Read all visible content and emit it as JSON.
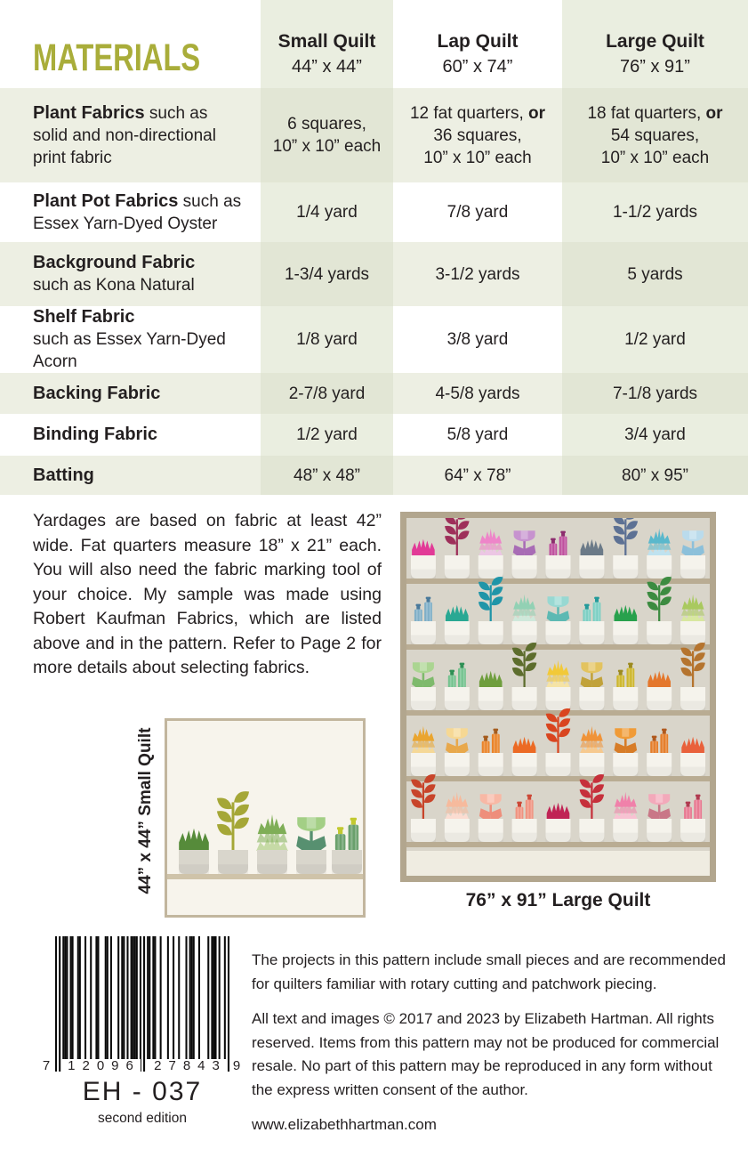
{
  "title": "MATERIALS",
  "accent_color": "#a9ad3a",
  "palette": {
    "table_tint_light": "#eaeee0",
    "table_row_green": "#edefe3",
    "table_tint_green": "#e2e6d5"
  },
  "table": {
    "columns": [
      {
        "label": "Small Quilt",
        "size": "44” x 44”"
      },
      {
        "label": "Lap Quilt",
        "size": "60” x 74”"
      },
      {
        "label": "Large Quilt",
        "size": "76” x 91”"
      }
    ],
    "rows": [
      {
        "name_bold": "Plant Fabrics",
        "name_rest": " such as",
        "sub": [
          "solid and non-directional",
          "print fabric"
        ],
        "shaded": true,
        "cells": [
          [
            {
              "t": "6 squares,"
            },
            {
              "t": "10” x 10” each"
            }
          ],
          [
            {
              "t": "12 fat quarters, ",
              "b": "or"
            },
            {
              "t": "36 squares,"
            },
            {
              "t": "10” x 10” each"
            }
          ],
          [
            {
              "t": "18 fat quarters, ",
              "b": "or"
            },
            {
              "t": "54 squares,"
            },
            {
              "t": "10” x 10” each"
            }
          ]
        ]
      },
      {
        "name_bold": "Plant Pot Fabrics",
        "name_rest": " such as",
        "sub": [
          "Essex Yarn-Dyed Oyster"
        ],
        "shaded": false,
        "cells": [
          [
            {
              "t": "1/4 yard"
            }
          ],
          [
            {
              "t": "7/8 yard"
            }
          ],
          [
            {
              "t": "1-1/2 yards"
            }
          ]
        ]
      },
      {
        "name_bold": "Background Fabric",
        "name_rest": "",
        "sub": [
          "such as Kona Natural"
        ],
        "shaded": true,
        "cells": [
          [
            {
              "t": "1-3/4 yards"
            }
          ],
          [
            {
              "t": "3-1/2 yards"
            }
          ],
          [
            {
              "t": "5 yards"
            }
          ]
        ]
      },
      {
        "name_bold": "Shelf Fabric",
        "name_rest": "",
        "sub": [
          "such as Essex Yarn-Dyed Acorn"
        ],
        "shaded": false,
        "cells": [
          [
            {
              "t": "1/8 yard"
            }
          ],
          [
            {
              "t": "3/8 yard"
            }
          ],
          [
            {
              "t": "1/2 yard"
            }
          ]
        ]
      },
      {
        "name_bold": "Backing Fabric",
        "name_rest": "",
        "sub": [],
        "shaded": true,
        "cells": [
          [
            {
              "t": "2-7/8 yard"
            }
          ],
          [
            {
              "t": "4-5/8 yards"
            }
          ],
          [
            {
              "t": "7-1/8 yards"
            }
          ]
        ]
      },
      {
        "name_bold": "Binding Fabric",
        "name_rest": "",
        "sub": [],
        "shaded": false,
        "cells": [
          [
            {
              "t": "1/2 yard"
            }
          ],
          [
            {
              "t": "5/8 yard"
            }
          ],
          [
            {
              "t": "3/4 yard"
            }
          ]
        ]
      },
      {
        "name_bold": "Batting",
        "name_rest": "",
        "sub": [],
        "shaded": true,
        "cells": [
          [
            {
              "t": "48” x 48”"
            }
          ],
          [
            {
              "t": "64” x 78”"
            }
          ],
          [
            {
              "t": "80” x 95”"
            }
          ]
        ]
      }
    ]
  },
  "notes_paragraph": "Yardages are based on fabric at least 42” wide. Fat quarters measure 18” x 21” each. You will also need the fabric marking tool of your choice. My sample was made using Robert Kaufman Fabrics, which are listed above and in the pattern. Refer to Page 2 for more details about selecting fabrics.",
  "small_quilt": {
    "caption": "44” x 44” Small Quilt",
    "bg": "#f7f4ec",
    "border": "#c2b69e",
    "pot": "#d9d6cc",
    "shelf": "#cfc3a9",
    "plants": [
      {
        "t": "bush",
        "c": "#568b3a"
      },
      {
        "t": "stem",
        "c": "#a5a737"
      },
      {
        "t": "agave",
        "c": "#7fae57",
        "c2": "#c6daa6"
      },
      {
        "t": "flower",
        "c": "#a3cf85",
        "c2": "#579070"
      },
      {
        "t": "bottles",
        "c": "#6aa06c",
        "c2": "#c2c930"
      }
    ]
  },
  "large_quilt": {
    "caption": "76” x 91” Large Quilt",
    "bg": "#d9d5ca",
    "border": "#b2a68e",
    "pot": "#f5f3ec",
    "shelf": "#b9ac93",
    "base": "#efece1",
    "rows": [
      [
        {
          "t": "bush",
          "c": "#e23a97",
          "c2": "#ef79bd"
        },
        {
          "t": "stem",
          "c": "#9e2f5a"
        },
        {
          "t": "agave",
          "c": "#ee85c9",
          "c2": "#ecc6e4"
        },
        {
          "t": "flower",
          "c": "#c793cf",
          "c2": "#a86cb5"
        },
        {
          "t": "bottles",
          "c": "#bf519e",
          "c2": "#8c2d6e"
        },
        {
          "t": "bush",
          "c": "#6b7a88",
          "c2": "#93a2ad"
        },
        {
          "t": "stem",
          "c": "#5d7194"
        },
        {
          "t": "agave",
          "c": "#5ab8cc",
          "c2": "#bfe2ef"
        },
        {
          "t": "flower",
          "c": "#badbec",
          "c2": "#8cc0da"
        }
      ],
      [
        {
          "t": "bottles",
          "c": "#7fafc7",
          "c2": "#49799b"
        },
        {
          "t": "bush",
          "c": "#29a893"
        },
        {
          "t": "stem",
          "c": "#1f95a8"
        },
        {
          "t": "agave",
          "c": "#92d1b4",
          "c2": "#cfe8da"
        },
        {
          "t": "flower",
          "c": "#98d8d2",
          "c2": "#5db9b3"
        },
        {
          "t": "bottles",
          "c": "#7bcfc3",
          "c2": "#239a9a"
        },
        {
          "t": "bush",
          "c": "#28a14d"
        },
        {
          "t": "stem",
          "c": "#3c8b40"
        },
        {
          "t": "agave",
          "c": "#a9c95f",
          "c2": "#d8e7a0"
        }
      ],
      [
        {
          "t": "flower",
          "c": "#abd591",
          "c2": "#7eba6c"
        },
        {
          "t": "bottles",
          "c": "#74c28e",
          "c2": "#2f9055"
        },
        {
          "t": "bush",
          "c": "#6f9e3d"
        },
        {
          "t": "stem",
          "c": "#5d6d2d"
        },
        {
          "t": "agave",
          "c": "#f2c938",
          "c2": "#f5e3a5"
        },
        {
          "t": "flower",
          "c": "#e3c35f",
          "c2": "#c1a23a"
        },
        {
          "t": "bottles",
          "c": "#cdb72e",
          "c2": "#9c8a20"
        },
        {
          "t": "bush",
          "c": "#e4772c"
        },
        {
          "t": "stem",
          "c": "#b5742e"
        }
      ],
      [
        {
          "t": "agave",
          "c": "#eaa52f",
          "c2": "#f5d897"
        },
        {
          "t": "flower",
          "c": "#f6d894",
          "c2": "#e8a84b"
        },
        {
          "t": "bottles",
          "c": "#ea8429",
          "c2": "#a55c1e"
        },
        {
          "t": "bush",
          "c": "#ec6a24"
        },
        {
          "t": "stem",
          "c": "#d9451f"
        },
        {
          "t": "agave",
          "c": "#f09338",
          "c2": "#f6c98f"
        },
        {
          "t": "flower",
          "c": "#f09b37",
          "c2": "#d77c27"
        },
        {
          "t": "bottles",
          "c": "#e57e2a",
          "c2": "#b0591d"
        },
        {
          "t": "bush",
          "c": "#e9613b"
        }
      ],
      [
        {
          "t": "stem",
          "c": "#c8442a"
        },
        {
          "t": "agave",
          "c": "#f6ba9d",
          "c2": "#fbdcd1"
        },
        {
          "t": "flower",
          "c": "#f8b8a5",
          "c2": "#ee8e7b"
        },
        {
          "t": "bottles",
          "c": "#f0927f",
          "c2": "#cc4837"
        },
        {
          "t": "bush",
          "c": "#c02455"
        },
        {
          "t": "stem",
          "c": "#c6303b"
        },
        {
          "t": "agave",
          "c": "#f081aa",
          "c2": "#f8c2d2"
        },
        {
          "t": "flower",
          "c": "#f3a9ba",
          "c2": "#c97787"
        },
        {
          "t": "bottles",
          "c": "#e87991",
          "c2": "#b03a50"
        }
      ]
    ]
  },
  "barcode": {
    "left_digit": "7",
    "group1": "12096",
    "group2": "27843",
    "right_digit": "9",
    "code": "EH - 037",
    "edition": "second edition"
  },
  "footer": {
    "paragraphs": [
      "The projects in this pattern include small pieces and are recommended for quilters familiar with rotary cutting and patchwork piecing.",
      "All text and images © 2017 and 2023 by Elizabeth Hartman. All rights reserved. Items from this pattern may not be produced for commercial resale. No part of this pattern may be reproduced in any form without the express written consent of the author."
    ],
    "website": "www.elizabethhartman.com"
  }
}
